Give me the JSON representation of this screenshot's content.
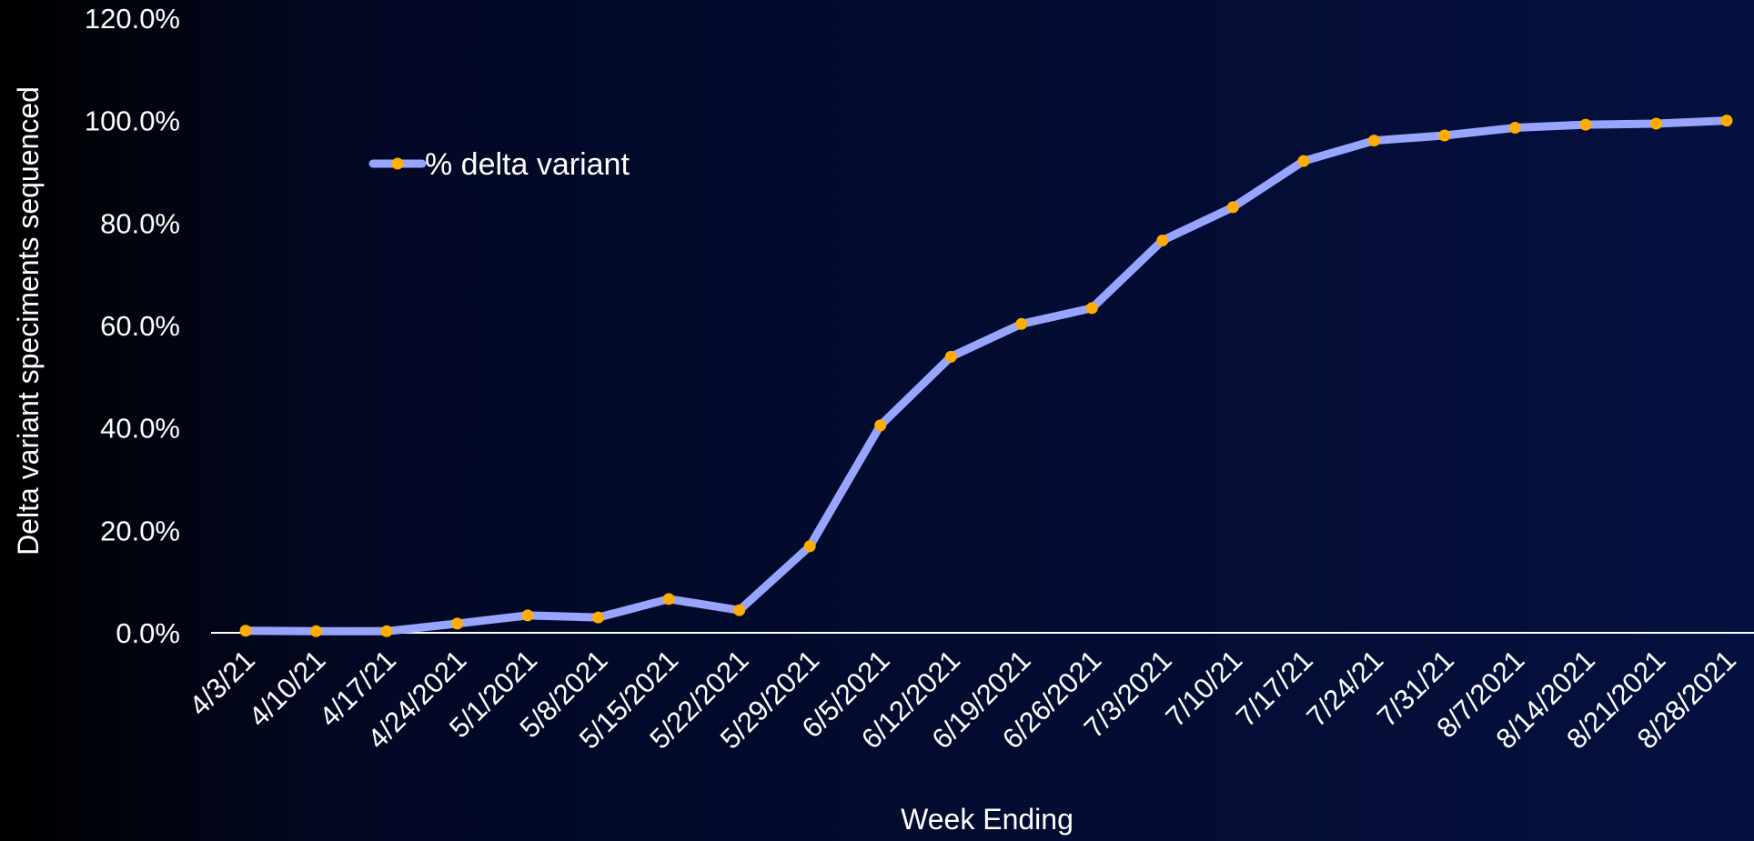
{
  "chart_data": {
    "type": "line",
    "title": "",
    "xlabel": "Week Ending",
    "ylabel": "Delta variant speciments sequenced",
    "ylim": [
      0,
      120
    ],
    "yticks": [
      "0.0%",
      "20.0%",
      "40.0%",
      "60.0%",
      "80.0%",
      "100.0%",
      "120.0%"
    ],
    "categories": [
      "4/3/21",
      "4/10/21",
      "4/17/21",
      "4/24/2021",
      "5/1/2021",
      "5/8/2021",
      "5/15/2021",
      "5/22/2021",
      "5/29/2021",
      "6/5/2021",
      "6/12/2021",
      "6/19/2021",
      "6/26/2021",
      "7/3/2021",
      "7/10/21",
      "7/17/21",
      "7/24/21",
      "7/31/21",
      "8/7/2021",
      "8/14/2021",
      "8/21/2021",
      "8/28/2021"
    ],
    "series": [
      {
        "name": "% delta variant",
        "values": [
          0.4,
          0.3,
          0.3,
          1.8,
          3.4,
          3.0,
          6.6,
          4.4,
          16.9,
          40.5,
          53.9,
          60.3,
          63.4,
          76.6,
          83.1,
          92.1,
          96.1,
          97.1,
          98.6,
          99.2,
          99.4,
          100.0
        ]
      }
    ],
    "colors": {
      "line": "#97a5ff",
      "marker": "#ffad00",
      "axis": "#ffffff",
      "text": "#ffffff"
    },
    "legend_position": "top-left",
    "grid": false
  }
}
